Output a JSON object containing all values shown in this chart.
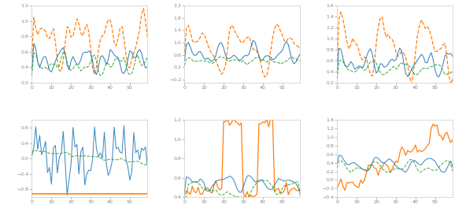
{
  "figsize": [
    5.78,
    2.78
  ],
  "dpi": 100,
  "n_points": 60,
  "bg_color": "#ffffff",
  "tick_labelsize": 4.5,
  "xticks": [
    0,
    10,
    20,
    30,
    40,
    50
  ],
  "subplots": [
    {
      "row": 0,
      "col": 0,
      "ylim": [
        0.2,
        1.2
      ],
      "yticks": [
        0.2,
        0.4,
        0.6,
        0.8,
        1.0,
        1.2
      ],
      "yticklabels": [
        "0.2",
        "0.4",
        "0.6",
        "0.8",
        "1.0",
        "1.2"
      ]
    },
    {
      "row": 0,
      "col": 1,
      "ylim": [
        -0.3,
        2.2
      ],
      "yticks": [
        -0.2,
        0.2,
        0.6,
        1.0,
        1.4,
        1.8,
        2.2
      ],
      "yticklabels": [
        "-0.2",
        "0.2",
        "0.6",
        "1.0",
        "1.4",
        "1.8",
        "2.2"
      ]
    },
    {
      "row": 0,
      "col": 2,
      "ylim": [
        0.2,
        1.6
      ],
      "yticks": [
        0.2,
        0.4,
        0.6,
        0.8,
        1.0,
        1.2,
        1.4,
        1.6
      ],
      "yticklabels": [
        "0.2",
        "0.4",
        "0.6",
        "0.8",
        "1.0",
        "1.2",
        "1.4",
        "1.6"
      ]
    },
    {
      "row": 1,
      "col": 0,
      "ylim": [
        -1.0,
        1.0
      ],
      "yticks": [
        -0.8,
        -0.4,
        0.0,
        0.4,
        0.8
      ],
      "yticklabels": [
        "-0.8",
        "-0.4",
        "0.0",
        "0.4",
        "0.8"
      ]
    },
    {
      "row": 1,
      "col": 1,
      "ylim": [
        0.4,
        1.2
      ],
      "yticks": [
        0.4,
        0.6,
        0.8,
        1.0,
        1.2
      ],
      "yticklabels": [
        "0.4",
        "0.6",
        "0.8",
        "1.0",
        "1.2"
      ]
    },
    {
      "row": 1,
      "col": 2,
      "ylim": [
        -0.4,
        1.4
      ],
      "yticks": [
        -0.4,
        -0.2,
        0.0,
        0.2,
        0.4,
        0.6,
        0.8,
        1.0,
        1.2,
        1.4
      ],
      "yticklabels": [
        "-0.4",
        "-0.2",
        "0.0",
        "0.2",
        "0.4",
        "0.6",
        "0.8",
        "1.0",
        "1.2",
        "1.4"
      ]
    }
  ],
  "colors": {
    "orange": "#ff7f0e",
    "blue": "#1f77b4",
    "green": "#2ca02c"
  },
  "lw_orange": 0.9,
  "lw_blue": 0.75,
  "lw_green": 0.75,
  "spine_color": "#bbbbbb",
  "tick_color": "#888888"
}
